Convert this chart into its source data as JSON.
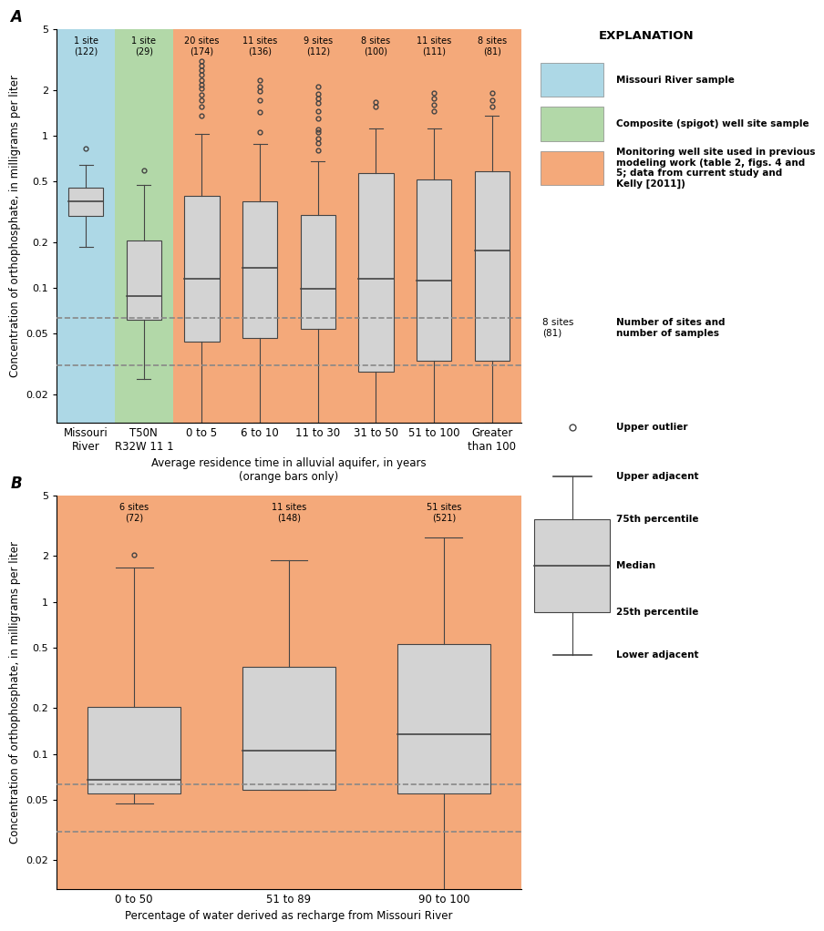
{
  "panel_A": {
    "groups": [
      {
        "label": "Missouri\nRiver",
        "bg_color": "#ADD8E6",
        "sites_label": "1 site\n(122)",
        "median": 0.37,
        "q1": 0.295,
        "q3": 0.455,
        "lower_adjacent": 0.185,
        "upper_adjacent": 0.645,
        "outliers": [
          0.82
        ]
      },
      {
        "label": "T50N\nR32W 11 1",
        "bg_color": "#B2D8A8",
        "sites_label": "1 site\n(29)",
        "median": 0.088,
        "q1": 0.062,
        "q3": 0.205,
        "lower_adjacent": 0.025,
        "upper_adjacent": 0.475,
        "outliers": [
          0.59
        ]
      },
      {
        "label": "0 to 5",
        "bg_color": "#F4A97A",
        "sites_label": "20 sites\n(174)",
        "median": 0.115,
        "q1": 0.044,
        "q3": 0.4,
        "lower_adjacent": 0.013,
        "upper_adjacent": 1.02,
        "outliers": [
          1.35,
          1.55,
          1.7,
          1.85,
          2.05,
          2.15,
          2.3,
          2.5,
          2.7,
          2.9,
          3.1
        ]
      },
      {
        "label": "6 to 10",
        "bg_color": "#F4A97A",
        "sites_label": "11 sites\n(136)",
        "median": 0.135,
        "q1": 0.047,
        "q3": 0.37,
        "lower_adjacent": 0.013,
        "upper_adjacent": 0.88,
        "outliers": [
          1.05,
          1.42,
          1.7,
          1.95,
          2.1,
          2.32
        ]
      },
      {
        "label": "11 to 30",
        "bg_color": "#F4A97A",
        "sites_label": "9 sites\n(112)",
        "median": 0.098,
        "q1": 0.054,
        "q3": 0.3,
        "lower_adjacent": 0.013,
        "upper_adjacent": 0.68,
        "outliers": [
          0.8,
          0.9,
          0.96,
          1.05,
          1.1,
          1.3,
          1.45,
          1.65,
          1.75,
          1.88,
          2.1
        ]
      },
      {
        "label": "31 to 50",
        "bg_color": "#F4A97A",
        "sites_label": "8 sites\n(100)",
        "median": 0.115,
        "q1": 0.028,
        "q3": 0.57,
        "lower_adjacent": 0.013,
        "upper_adjacent": 1.12,
        "outliers": [
          1.55,
          1.67
        ]
      },
      {
        "label": "51 to 100",
        "bg_color": "#F4A97A",
        "sites_label": "11 sites\n(111)",
        "median": 0.112,
        "q1": 0.033,
        "q3": 0.515,
        "lower_adjacent": 0.013,
        "upper_adjacent": 1.12,
        "outliers": [
          1.45,
          1.6,
          1.75,
          1.9
        ]
      },
      {
        "label": "Greater\nthan 100",
        "bg_color": "#F4A97A",
        "sites_label": "8 sites\n(81)",
        "median": 0.175,
        "q1": 0.033,
        "q3": 0.58,
        "lower_adjacent": 0.013,
        "upper_adjacent": 1.35,
        "outliers": [
          1.55,
          1.7,
          1.9
        ]
      }
    ],
    "dashed_lines": [
      0.063,
      0.031
    ],
    "ylim": [
      0.013,
      5.0
    ],
    "yticks": [
      0.02,
      0.05,
      0.1,
      0.2,
      0.5,
      1.0,
      2.0,
      5.0
    ],
    "yticklabels": [
      "0.02",
      "0.05",
      "0.1",
      "0.2",
      "0.5",
      "1",
      "2",
      "5"
    ],
    "xlabel": "Average residence time in alluvial aquifer, in years\n(orange bars only)",
    "ylabel": "Concentration of orthophosphate, in milligrams per liter"
  },
  "panel_B": {
    "groups": [
      {
        "label": "0 to 50",
        "bg_color": "#F4A97A",
        "sites_label": "6 sites\n(72)",
        "median": 0.068,
        "q1": 0.055,
        "q3": 0.205,
        "lower_adjacent": 0.047,
        "upper_adjacent": 1.68,
        "outliers": [
          2.05
        ]
      },
      {
        "label": "51 to 89",
        "bg_color": "#F4A97A",
        "sites_label": "11 sites\n(148)",
        "median": 0.105,
        "q1": 0.058,
        "q3": 0.375,
        "lower_adjacent": 0.058,
        "upper_adjacent": 1.88,
        "outliers": []
      },
      {
        "label": "90 to 100",
        "bg_color": "#F4A97A",
        "sites_label": "51 sites\n(521)",
        "median": 0.135,
        "q1": 0.055,
        "q3": 0.525,
        "lower_adjacent": 0.012,
        "upper_adjacent": 2.65,
        "outliers": []
      }
    ],
    "dashed_lines": [
      0.063,
      0.031
    ],
    "ylim": [
      0.013,
      5.0
    ],
    "yticks": [
      0.02,
      0.05,
      0.1,
      0.2,
      0.5,
      1.0,
      2.0,
      5.0
    ],
    "yticklabels": [
      "0.02",
      "0.05",
      "0.1",
      "0.2",
      "0.5",
      "1",
      "2",
      "5"
    ],
    "xlabel": "Percentage of water derived as recharge from Missouri River",
    "ylabel": "Concentration of orthophosphate, in milligrams per liter"
  },
  "legend": {
    "title": "EXPLANATION",
    "colors": [
      "#ADD8E6",
      "#B2D8A8",
      "#F4A97A"
    ],
    "labels": [
      "Missouri River sample",
      "Composite (spigot) well site sample",
      "Monitoring well site used in previous\nmodeling work (table 2, figs. 4 and\n5; data from current study and\nKelly [2011])"
    ],
    "example_sites": "8 sites\n(81)",
    "boxplot_legend_labels": [
      "Number of sites and\nnumber of samples",
      "Upper outlier",
      "Upper adjacent",
      "75th percentile",
      "Median",
      "25th percentile",
      "Lower adjacent"
    ]
  },
  "box_facecolor": "#D3D3D3",
  "box_edgecolor": "#444444",
  "outlier_edgecolor": "#444444",
  "dashed_color": "#888888"
}
